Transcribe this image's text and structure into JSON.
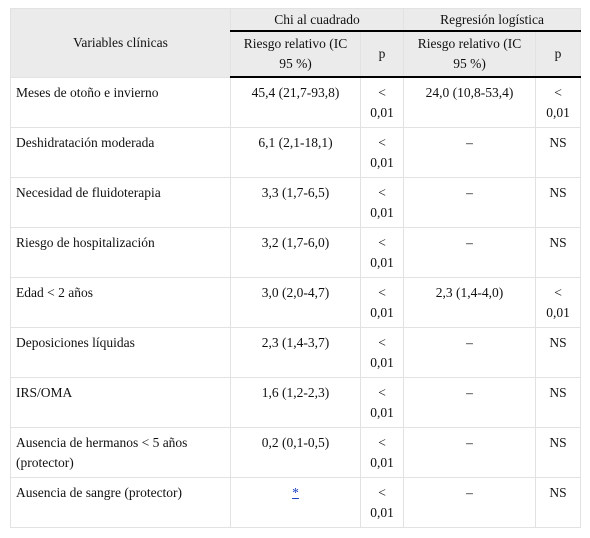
{
  "table": {
    "header": {
      "variables": "Variables clínicas",
      "groups": [
        "Chi al cuadrado",
        "Regresión logística"
      ],
      "columns": [
        "Riesgo relativo (IC 95 %)",
        "p",
        "Riesgo relativo (IC 95 %)",
        "p"
      ]
    },
    "rows": [
      [
        "Meses de otoño e invierno",
        "45,4 (21,7-93,8)",
        "< 0,01",
        "24,0 (10,8-53,4)",
        "< 0,01"
      ],
      [
        "Deshidratación moderada",
        "6,1 (2,1-18,1)",
        "< 0,01",
        "–",
        "NS"
      ],
      [
        "Necesidad de fluidoterapia",
        "3,3 (1,7-6,5)",
        "< 0,01",
        "–",
        "NS"
      ],
      [
        "Riesgo de hospitalización",
        "3,2 (1,7-6,0)",
        "< 0,01",
        "–",
        "NS"
      ],
      [
        "Edad < 2 años",
        "3,0 (2,0-4,7)",
        "< 0,01",
        "2,3 (1,4-4,0)",
        "< 0,01"
      ],
      [
        "Deposiciones líquidas",
        "2,3 (1,4-3,7)",
        "< 0,01",
        "–",
        "NS"
      ],
      [
        "IRS/OMA",
        "1,6 (1,2-2,3)",
        "< 0,01",
        "–",
        "NS"
      ],
      [
        "Ausencia de hermanos < 5 años (protector)",
        "0,2 (0,1-0,5)",
        "< 0,01",
        "–",
        "NS"
      ],
      [
        "Ausencia de sangre (protector)",
        {
          "link": "*"
        },
        "< 0,01",
        "–",
        "NS"
      ]
    ]
  }
}
